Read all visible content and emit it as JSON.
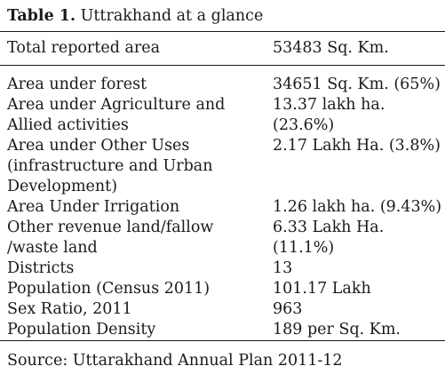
{
  "caption": {
    "label": "Table 1.",
    "title": "Uttrakhand at a glance"
  },
  "header": {
    "label": "Total reported area",
    "value": "53483 Sq. Km."
  },
  "rows": [
    {
      "label_lines": [
        "Area under forest"
      ],
      "value_lines": [
        "34651 Sq. Km. (65%)"
      ]
    },
    {
      "label_lines": [
        "Area under Agriculture and",
        "Allied activities"
      ],
      "value_lines": [
        "13.37 lakh ha.",
        "(23.6%)"
      ]
    },
    {
      "label_lines": [
        "Area under Other Uses",
        "(infrastructure and Urban",
        "Development)"
      ],
      "value_lines": [
        "2.17 Lakh Ha. (3.8%)"
      ]
    },
    {
      "label_lines": [
        "Area Under Irrigation"
      ],
      "value_lines": [
        "1.26 lakh ha. (9.43%)"
      ]
    },
    {
      "label_lines": [
        "Other revenue land/fallow",
        "/waste land"
      ],
      "value_lines": [
        "6.33 Lakh Ha.",
        "(11.1%)"
      ]
    },
    {
      "label_lines": [
        "Districts"
      ],
      "value_lines": [
        "13"
      ]
    },
    {
      "label_lines": [
        "Population (Census 2011)"
      ],
      "value_lines": [
        "101.17 Lakh"
      ]
    },
    {
      "label_lines": [
        "Sex Ratio, 2011"
      ],
      "value_lines": [
        "963"
      ]
    },
    {
      "label_lines": [
        "Population Density"
      ],
      "value_lines": [
        "189 per Sq. Km."
      ]
    }
  ],
  "source": "Source: Uttarakhand Annual Plan 2011-12"
}
